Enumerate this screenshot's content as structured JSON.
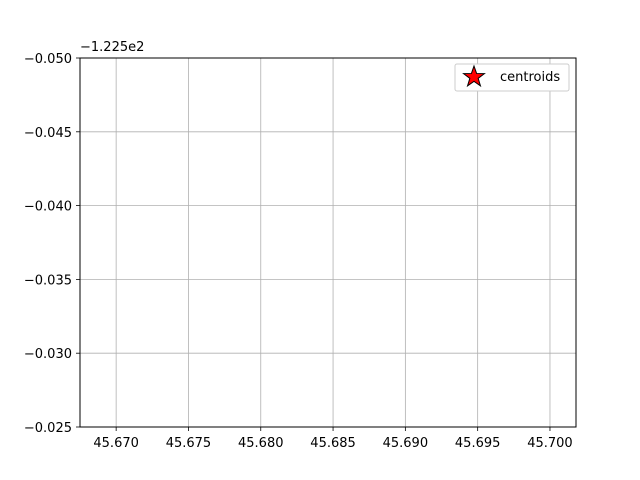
{
  "chart_data": {
    "type": "scatter",
    "title": "",
    "xlabel": "",
    "ylabel": "",
    "axis_offset_text": "−1.225e2",
    "xlim": [
      45.6675,
      45.7018
    ],
    "ylim": [
      -0.025,
      -0.05
    ],
    "y_inverted": true,
    "x_ticks": [
      45.67,
      45.675,
      45.68,
      45.685,
      45.69,
      45.695,
      45.7
    ],
    "x_tick_labels": [
      "45.670",
      "45.675",
      "45.680",
      "45.685",
      "45.690",
      "45.695",
      "45.700"
    ],
    "y_ticks": [
      -0.05,
      -0.045,
      -0.04,
      -0.035,
      -0.03,
      -0.025
    ],
    "y_tick_labels": [
      "−0.050",
      "−0.045",
      "−0.040",
      "−0.035",
      "−0.030",
      "−0.025"
    ],
    "grid": true,
    "series": [
      {
        "name": "centroids",
        "marker": "star",
        "color": "#ff0000",
        "edgecolor": "#000000",
        "points": []
      }
    ],
    "legend": {
      "placement": "top-right",
      "entries": [
        "centroids"
      ]
    }
  },
  "colors": {
    "grid": "#b0b0b0",
    "axes": "#000000",
    "marker_fill": "#ff0000"
  }
}
